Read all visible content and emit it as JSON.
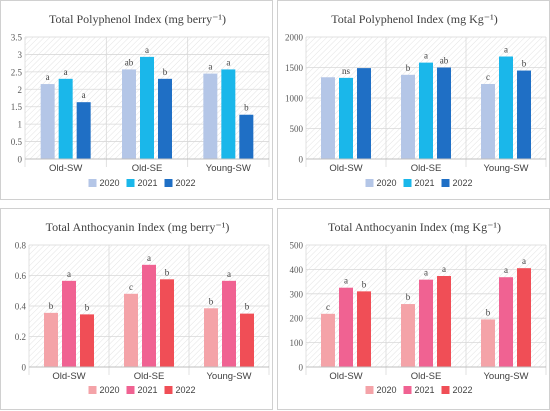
{
  "chart_data": [
    {
      "type": "bar",
      "title": "Total Polyphenol Index (mg berry⁻¹)",
      "categories": [
        "Old-SW",
        "Old-SE",
        "Young-SW"
      ],
      "ylim": [
        0,
        3.5
      ],
      "yticks": [
        "0",
        "0.5",
        "1",
        "1.5",
        "2",
        "2.5",
        "3",
        "3.5"
      ],
      "ytick_values": [
        0,
        0.5,
        1,
        1.5,
        2,
        2.5,
        3,
        3.5
      ],
      "grid": true,
      "legend_position": "bottom",
      "series": [
        {
          "name": "2020",
          "values": [
            2.15,
            2.57,
            2.45
          ],
          "labels": [
            "a",
            "ab",
            "a"
          ]
        },
        {
          "name": "2021",
          "values": [
            2.3,
            2.93,
            2.57
          ],
          "labels": [
            "a",
            "a",
            "a"
          ]
        },
        {
          "name": "2022",
          "values": [
            1.63,
            2.3,
            1.27
          ],
          "labels": [
            "a",
            "b",
            "b"
          ]
        }
      ],
      "colors": [
        "#b4c6e7",
        "#1ab7ea",
        "#1f6fc5"
      ]
    },
    {
      "type": "bar",
      "title": "Total Polyphenol Index (mg Kg⁻¹)",
      "categories": [
        "Old-SW",
        "Old-SE",
        "Young-SW"
      ],
      "ylim": [
        0,
        2000
      ],
      "yticks": [
        "0",
        "500",
        "1000",
        "1500",
        "2000"
      ],
      "ytick_values": [
        0,
        500,
        1000,
        1500,
        2000
      ],
      "grid": true,
      "legend_position": "bottom",
      "series": [
        {
          "name": "2020",
          "values": [
            1340,
            1380,
            1230
          ],
          "labels": [
            "",
            "b",
            "c"
          ]
        },
        {
          "name": "2021",
          "values": [
            1330,
            1580,
            1680
          ],
          "labels": [
            "ns",
            "a",
            "a"
          ]
        },
        {
          "name": "2022",
          "values": [
            1490,
            1500,
            1450
          ],
          "labels": [
            "",
            "ab",
            "b"
          ]
        }
      ],
      "colors": [
        "#b4c6e7",
        "#1ab7ea",
        "#1f6fc5"
      ]
    },
    {
      "type": "bar",
      "title": "Total Anthocyanin Index (mg berry⁻¹)",
      "categories": [
        "Old-SW",
        "Old-SE",
        "Young-SW"
      ],
      "ylim": [
        0,
        0.8
      ],
      "yticks": [
        "0",
        "0.2",
        "0.4",
        "0.6",
        "0.8"
      ],
      "ytick_values": [
        0,
        0.2,
        0.4,
        0.6,
        0.8
      ],
      "grid": true,
      "legend_position": "bottom",
      "series": [
        {
          "name": "2020",
          "values": [
            0.355,
            0.48,
            0.385
          ],
          "labels": [
            "b",
            "c",
            "b"
          ]
        },
        {
          "name": "2021",
          "values": [
            0.565,
            0.67,
            0.565
          ],
          "labels": [
            "a",
            "a",
            "a"
          ]
        },
        {
          "name": "2022",
          "values": [
            0.345,
            0.575,
            0.35
          ],
          "labels": [
            "b",
            "b",
            "b"
          ]
        }
      ],
      "colors": [
        "#f4a3a8",
        "#f06292",
        "#f04e56"
      ]
    },
    {
      "type": "bar",
      "title": "Total Anthocyanin Index (mg Kg⁻¹)",
      "categories": [
        "Old-SW",
        "Old-SE",
        "Young-SW"
      ],
      "ylim": [
        0,
        500
      ],
      "yticks": [
        "0",
        "100",
        "200",
        "300",
        "400",
        "500"
      ],
      "ytick_values": [
        0,
        100,
        200,
        300,
        400,
        500
      ],
      "grid": true,
      "legend_position": "bottom",
      "series": [
        {
          "name": "2020",
          "values": [
            218,
            258,
            195
          ],
          "labels": [
            "c",
            "b",
            "b"
          ]
        },
        {
          "name": "2021",
          "values": [
            325,
            358,
            368
          ],
          "labels": [
            "a",
            "a",
            "a"
          ]
        },
        {
          "name": "2022",
          "values": [
            310,
            373,
            405
          ],
          "labels": [
            "b",
            "a",
            "a"
          ]
        }
      ],
      "colors": [
        "#f4a3a8",
        "#f06292",
        "#f04e56"
      ]
    }
  ]
}
